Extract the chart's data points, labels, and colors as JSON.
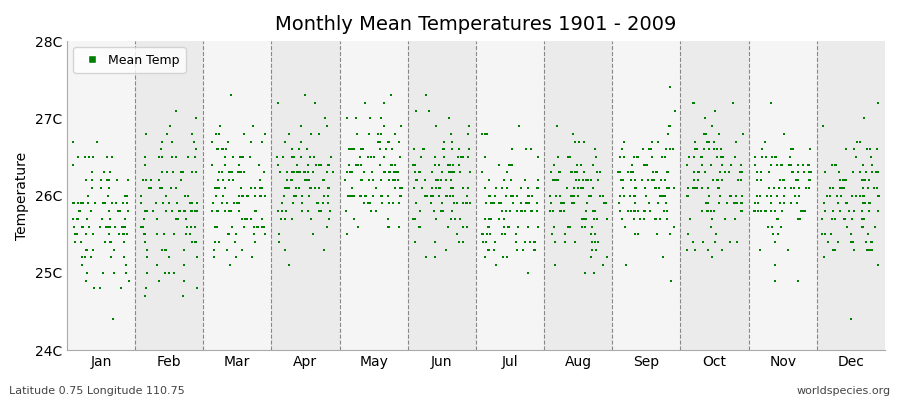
{
  "title": "Monthly Mean Temperatures 1901 - 2009",
  "ylabel": "Temperature",
  "xlabel": "",
  "ylim": [
    24.0,
    28.0
  ],
  "ytick_labels": [
    "24C",
    "25C",
    "26C",
    "27C",
    "28C"
  ],
  "ytick_values": [
    24,
    25,
    26,
    27,
    28
  ],
  "months": [
    "Jan",
    "Feb",
    "Mar",
    "Apr",
    "May",
    "Jun",
    "Jul",
    "Aug",
    "Sep",
    "Oct",
    "Nov",
    "Dec"
  ],
  "n_years": 109,
  "start_year": 1901,
  "end_year": 2009,
  "marker_color": "#008000",
  "marker": "s",
  "marker_size": 3,
  "legend_label": "Mean Temp",
  "bg_color_odd": "#EBEBEB",
  "bg_color_even": "#F5F5F5",
  "fig_color": "#FFFFFF",
  "dashed_line_color": "#888888",
  "bottom_left_text": "Latitude 0.75 Longitude 110.75",
  "bottom_right_text": "worldspecies.org",
  "monthly_means": [
    25.75,
    25.75,
    26.05,
    26.2,
    26.2,
    26.1,
    25.85,
    25.95,
    26.1,
    26.15,
    26.1,
    26.0
  ],
  "monthly_stds": [
    0.5,
    0.55,
    0.42,
    0.4,
    0.42,
    0.42,
    0.42,
    0.42,
    0.4,
    0.4,
    0.4,
    0.45
  ],
  "seed": 42
}
